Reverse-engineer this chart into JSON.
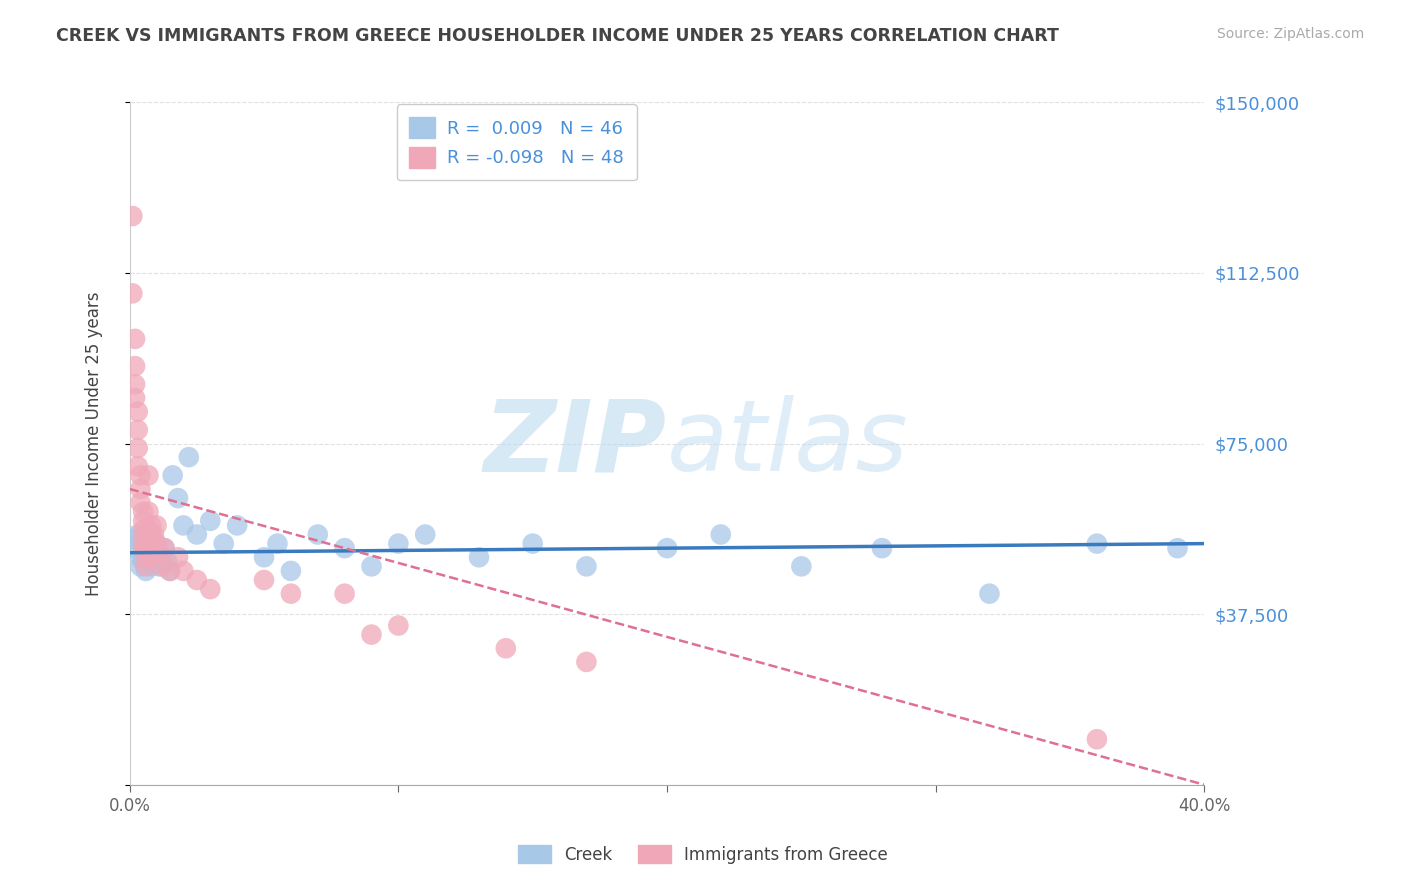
{
  "title": "CREEK VS IMMIGRANTS FROM GREECE HOUSEHOLDER INCOME UNDER 25 YEARS CORRELATION CHART",
  "source": "Source: ZipAtlas.com",
  "ylabel": "Householder Income Under 25 years",
  "xlim": [
    0.0,
    0.4
  ],
  "ylim": [
    0,
    150000
  ],
  "yticks": [
    0,
    37500,
    75000,
    112500,
    150000
  ],
  "ytick_labels": [
    "",
    "$37,500",
    "$75,000",
    "$112,500",
    "$150,000"
  ],
  "xticks": [
    0.0,
    0.1,
    0.2,
    0.3,
    0.4
  ],
  "xtick_labels": [
    "0.0%",
    "",
    "",
    "",
    "40.0%"
  ],
  "creek_R": 0.009,
  "creek_N": 46,
  "greece_R": -0.098,
  "greece_N": 48,
  "creek_color": "#a8c8e8",
  "greece_color": "#f0a8b8",
  "creek_line_color": "#3a7abf",
  "greece_line_color": "#e07090",
  "watermark_zip": "ZIP",
  "watermark_atlas": "atlas",
  "title_color": "#444444",
  "axis_color": "#4a90d9",
  "background_color": "#ffffff",
  "grid_color": "#e0e0e0",
  "creek_x": [
    0.001,
    0.002,
    0.003,
    0.004,
    0.004,
    0.005,
    0.005,
    0.006,
    0.006,
    0.007,
    0.007,
    0.008,
    0.008,
    0.009,
    0.01,
    0.011,
    0.012,
    0.013,
    0.014,
    0.015,
    0.016,
    0.018,
    0.02,
    0.022,
    0.025,
    0.03,
    0.035,
    0.04,
    0.05,
    0.055,
    0.06,
    0.07,
    0.08,
    0.09,
    0.1,
    0.11,
    0.13,
    0.15,
    0.17,
    0.2,
    0.22,
    0.25,
    0.28,
    0.32,
    0.36,
    0.39
  ],
  "creek_y": [
    54000,
    52000,
    55000,
    50000,
    48000,
    53000,
    49000,
    51000,
    47000,
    52000,
    50000,
    48000,
    54000,
    51000,
    53000,
    48000,
    50000,
    52000,
    49000,
    47000,
    68000,
    63000,
    57000,
    72000,
    55000,
    58000,
    53000,
    57000,
    50000,
    53000,
    47000,
    55000,
    52000,
    48000,
    53000,
    55000,
    50000,
    53000,
    48000,
    52000,
    55000,
    48000,
    52000,
    42000,
    53000,
    52000
  ],
  "greece_x": [
    0.001,
    0.001,
    0.002,
    0.002,
    0.002,
    0.002,
    0.003,
    0.003,
    0.003,
    0.003,
    0.004,
    0.004,
    0.004,
    0.005,
    0.005,
    0.005,
    0.005,
    0.005,
    0.006,
    0.006,
    0.006,
    0.007,
    0.007,
    0.007,
    0.007,
    0.008,
    0.008,
    0.008,
    0.009,
    0.009,
    0.01,
    0.01,
    0.011,
    0.012,
    0.013,
    0.015,
    0.018,
    0.02,
    0.025,
    0.03,
    0.05,
    0.06,
    0.08,
    0.09,
    0.1,
    0.14,
    0.17,
    0.36
  ],
  "greece_y": [
    125000,
    108000,
    98000,
    92000,
    88000,
    85000,
    82000,
    78000,
    74000,
    70000,
    68000,
    65000,
    62000,
    60000,
    58000,
    56000,
    54000,
    52000,
    52000,
    50000,
    48000,
    68000,
    60000,
    56000,
    52000,
    57000,
    55000,
    50000,
    55000,
    52000,
    57000,
    53000,
    51000,
    48000,
    52000,
    47000,
    50000,
    47000,
    45000,
    43000,
    45000,
    42000,
    42000,
    33000,
    35000,
    30000,
    27000,
    10000
  ],
  "creek_trend_x": [
    0.0,
    0.4
  ],
  "creek_trend_y": [
    51000,
    53000
  ],
  "greece_trend_x": [
    0.0,
    0.4
  ],
  "greece_trend_y": [
    65000,
    0
  ]
}
